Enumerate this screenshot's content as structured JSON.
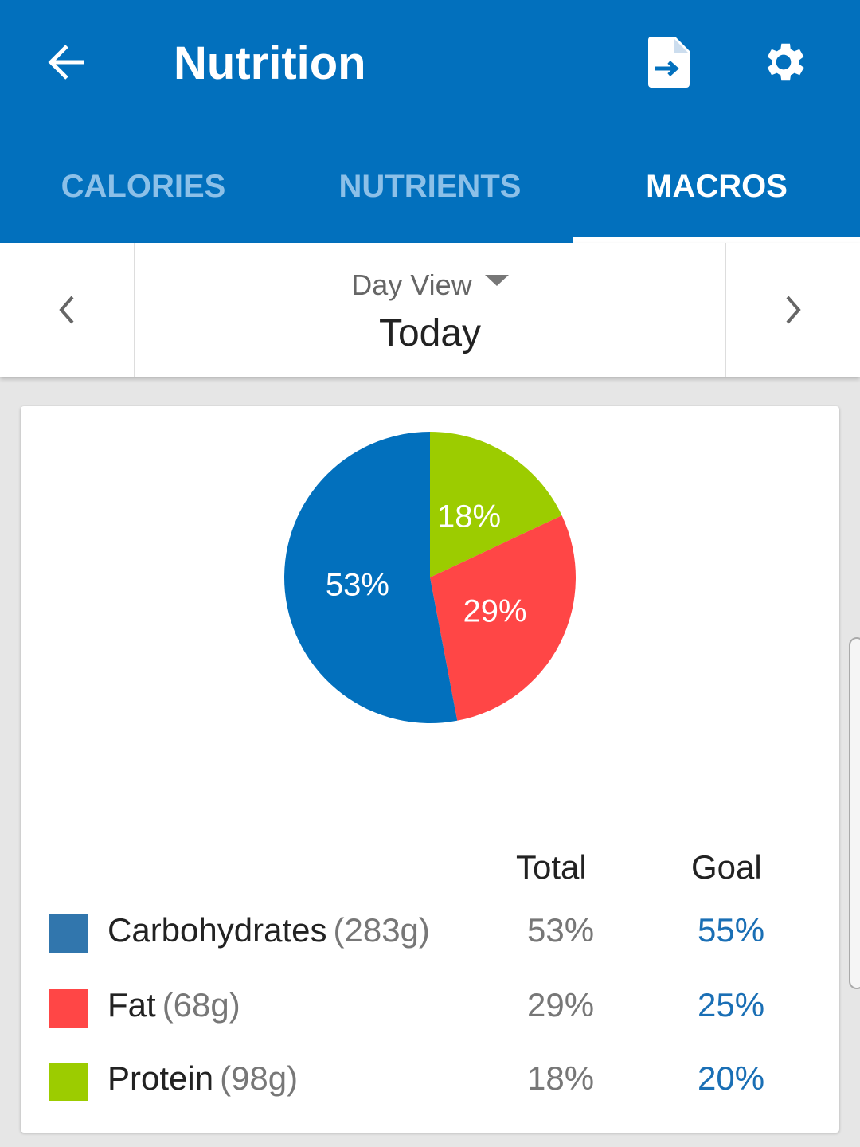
{
  "header": {
    "title": "Nutrition",
    "back_icon": "arrow-left-icon",
    "export_icon": "file-export-icon",
    "settings_icon": "gear-icon"
  },
  "tabs": [
    {
      "label": "CALORIES",
      "active": false
    },
    {
      "label": "NUTRIENTS",
      "active": false
    },
    {
      "label": "MACROS",
      "active": true
    }
  ],
  "day_selector": {
    "view_label": "Day View",
    "date": "Today"
  },
  "chart_data": {
    "type": "pie",
    "slices": [
      {
        "label": "Protein",
        "value": 18,
        "display": "18%",
        "color": "#9ccc00"
      },
      {
        "label": "Fat",
        "value": 29,
        "display": "29%",
        "color": "#ff4646"
      },
      {
        "label": "Carbohydrates",
        "value": 53,
        "display": "53%",
        "color": "#0270bd"
      }
    ]
  },
  "table": {
    "headers": {
      "total": "Total",
      "goal": "Goal"
    },
    "rows": [
      {
        "name": "Carbohydrates",
        "grams": "(283g)",
        "total": "53%",
        "goal": "55%",
        "color": "#3176ad"
      },
      {
        "name": "Fat",
        "grams": "(68g)",
        "total": "29%",
        "goal": "25%",
        "color": "#ff4646"
      },
      {
        "name": "Protein",
        "grams": "(98g)",
        "total": "18%",
        "goal": "20%",
        "color": "#9ccc00"
      }
    ]
  }
}
